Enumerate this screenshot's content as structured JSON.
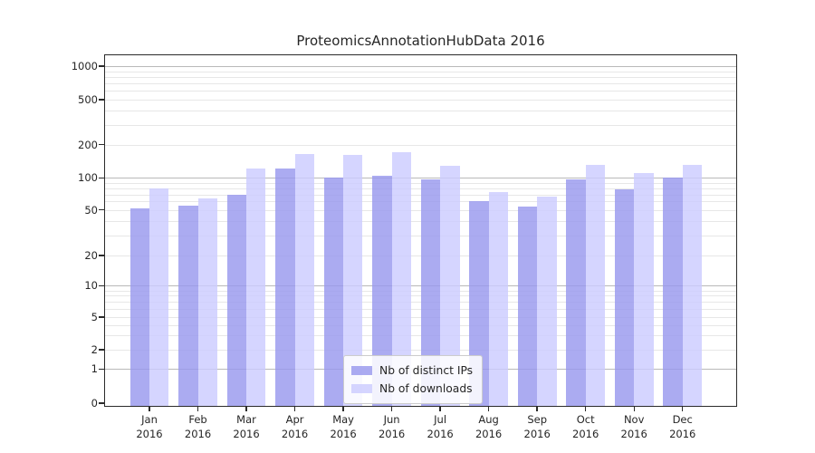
{
  "title": "ProteomicsAnnotationHubData 2016",
  "chart_data": {
    "type": "bar",
    "title": "ProteomicsAnnotationHubData 2016",
    "categories": [
      "Jan 2016",
      "Feb 2016",
      "Mar 2016",
      "Apr 2016",
      "May 2016",
      "Jun 2016",
      "Jul 2016",
      "Aug 2016",
      "Sep 2016",
      "Oct 2016",
      "Nov 2016",
      "Dec 2016"
    ],
    "series": [
      {
        "name": "Nb of distinct IPs",
        "color": "#9999ee",
        "values": [
          52,
          55,
          70,
          121,
          100,
          105,
          97,
          60,
          54,
          96,
          78,
          101
        ]
      },
      {
        "name": "Nb of downloads",
        "color": "#ccccff",
        "values": [
          80,
          64,
          121,
          165,
          162,
          169,
          129,
          74,
          67,
          130,
          111,
          132
        ]
      }
    ],
    "y_ticks": [
      0,
      1,
      2,
      5,
      10,
      20,
      50,
      100,
      200,
      500,
      1000
    ],
    "y_scale": "log-like with 0 baseline",
    "ylim": [
      0,
      1200
    ],
    "xlabel": "",
    "ylabel": "",
    "grid": true,
    "legend_position": "lower center"
  }
}
